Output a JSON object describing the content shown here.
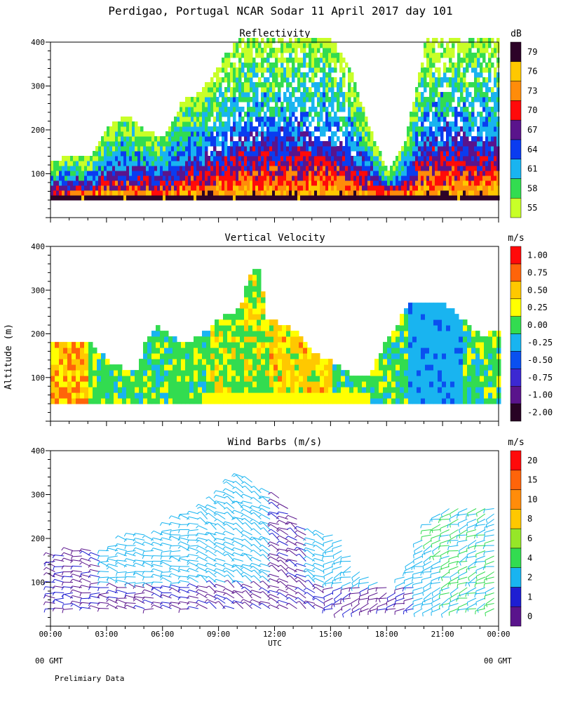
{
  "chart_data": {
    "type": "heatmap",
    "title": "Perdigao, Portugal  NCAR Sodar  11 April 2017  day 101",
    "xlabel": "UTC",
    "ylabel": "Altitude (m)",
    "x_range_hours": [
      0,
      24
    ],
    "y_range_m": [
      0,
      400
    ],
    "x_tick_labels": [
      "00:00",
      "03:00",
      "06:00",
      "09:00",
      "12:00",
      "15:00",
      "18:00",
      "21:00",
      "00:00"
    ],
    "y_tick_labels": [
      "100",
      "200",
      "300",
      "400"
    ],
    "footer_left": "00 GMT",
    "footer_right": "00 GMT",
    "note": "Prelimiary Data",
    "panels": [
      {
        "title": "Reflectivity",
        "unit": "dB",
        "levels": [
          "55",
          "58",
          "61",
          "64",
          "67",
          "70",
          "73",
          "76",
          "79"
        ],
        "colors": [
          "#c8ff28",
          "#32dc50",
          "#19b4f0",
          "#0a3cf0",
          "#5a148c",
          "#ff0a0a",
          "#ff8c0a",
          "#ffc800",
          "#2d0328"
        ],
        "data_top_m": [
          120,
          140,
          130,
          200,
          230,
          190,
          180,
          260,
          280,
          350,
          400,
          400,
          400,
          400,
          400,
          400,
          330,
          200,
          100,
          180,
          400,
          400,
          400,
          400,
          400
        ],
        "scale_pow": 0.45
      },
      {
        "title": "Vertical Velocity",
        "unit": "m/s",
        "levels": [
          "-2.00",
          "-1.00",
          "-0.75",
          "-0.50",
          "-0.25",
          "0.00",
          "0.25",
          "0.50",
          "0.75",
          "1.00"
        ],
        "colors": [
          "#280324",
          "#5a148c",
          "#3c28d2",
          "#0a50f0",
          "#19b4f0",
          "#32dc50",
          "#ffff00",
          "#ffc800",
          "#ff640a",
          "#ff0a0a"
        ],
        "data_top_m": [
          175,
          175,
          175,
          130,
          110,
          110,
          180,
          210,
          200,
          170,
          190,
          230,
          250,
          320,
          350,
          230,
          220,
          200,
          150,
          130,
          100,
          100,
          190,
          220,
          260,
          260,
          260,
          190,
          200
        ],
        "top_hours": [
          0,
          1,
          2,
          3,
          4,
          4.5,
          5,
          5.5,
          6,
          7,
          8,
          9,
          10,
          10.5,
          11,
          11.5,
          12,
          13,
          14,
          15,
          16,
          17,
          18,
          18.5,
          19,
          20,
          21,
          23,
          24
        ]
      },
      {
        "title": "Wind Barbs (m/s)",
        "unit": "m/s",
        "levels": [
          "0",
          "1",
          "2",
          "4",
          "6",
          "8",
          "10",
          "15",
          "20"
        ],
        "colors": [
          "#5a148c",
          "#1e1ed2",
          "#19b4f0",
          "#32dc50",
          "#96e628",
          "#ffc800",
          "#ff8c0a",
          "#ff640a",
          "#ff0a0a"
        ],
        "data_top_m": [
          160,
          170,
          180,
          170,
          190,
          220,
          200,
          240,
          260,
          270,
          300,
          350,
          320,
          300,
          270,
          220,
          220,
          200,
          130,
          100,
          80,
          150,
          230,
          280,
          280,
          280,
          280
        ],
        "sample_speeds_ms": [
          1,
          2,
          4,
          6
        ]
      }
    ]
  }
}
